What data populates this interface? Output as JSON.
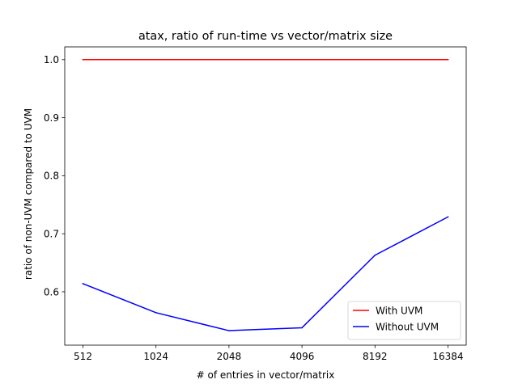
{
  "chart_data": {
    "type": "line",
    "title": "atax, ratio of run-time vs vector/matrix size",
    "xlabel": "# of entries in vector/matrix",
    "ylabel": "ratio of non-UVM compared to UVM",
    "categories": [
      "512",
      "1024",
      "2048",
      "4096",
      "8192",
      "16384"
    ],
    "ylim": [
      0.508,
      1.022
    ],
    "yticks": [
      0.6,
      0.7,
      0.8,
      0.9,
      1.0
    ],
    "ytick_labels": [
      "0.6",
      "0.7",
      "0.8",
      "0.9",
      "1.0"
    ],
    "grid": false,
    "legend_position": "lower-right",
    "series": [
      {
        "name": "With UVM",
        "color": "#ff0000",
        "values": [
          1.0,
          1.0,
          1.0,
          1.0,
          1.0,
          1.0
        ]
      },
      {
        "name": "Without UVM",
        "color": "#0000ff",
        "values": [
          0.614,
          0.564,
          0.533,
          0.538,
          0.663,
          0.729
        ]
      }
    ]
  }
}
